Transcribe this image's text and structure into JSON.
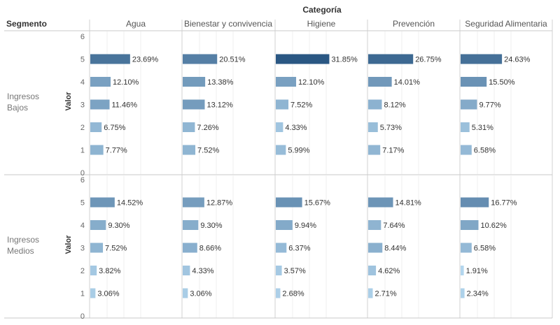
{
  "header": {
    "column_group_title": "Categoría",
    "row_header": "Segmento",
    "axis_title": "Valor"
  },
  "chart_data": {
    "type": "bar",
    "orientation": "horizontal",
    "columns": [
      "Agua",
      "Bienestar y convivencia",
      "Higiene",
      "Prevención",
      "Seguridad Alimentaria"
    ],
    "rows": [
      {
        "segment": "Ingresos Bajos",
        "categories": [
          "5",
          "4",
          "3",
          "2",
          "1"
        ],
        "values": [
          [
            23.69,
            12.1,
            11.46,
            6.75,
            7.77
          ],
          [
            20.51,
            13.38,
            13.12,
            7.26,
            7.52
          ],
          [
            31.85,
            12.1,
            7.52,
            4.33,
            5.99
          ],
          [
            26.75,
            14.01,
            8.12,
            5.73,
            7.17
          ],
          [
            24.63,
            15.5,
            9.77,
            5.31,
            6.58
          ]
        ],
        "labels": [
          [
            "23.69%",
            "12.10%",
            "11.46%",
            "6.75%",
            "7.77%"
          ],
          [
            "20.51%",
            "13.38%",
            "13.12%",
            "7.26%",
            "7.52%"
          ],
          [
            "31.85%",
            "12.10%",
            "7.52%",
            "4.33%",
            "5.99%"
          ],
          [
            "26.75%",
            "14.01%",
            "8.12%",
            "5.73%",
            "7.17%"
          ],
          [
            "24.63%",
            "15.50%",
            "9.77%",
            "5.31%",
            "6.58%"
          ]
        ]
      },
      {
        "segment": "Ingresos Medios",
        "categories": [
          "5",
          "4",
          "3",
          "2",
          "1"
        ],
        "values": [
          [
            14.52,
            9.3,
            7.52,
            3.82,
            3.06
          ],
          [
            12.87,
            9.3,
            8.66,
            4.33,
            3.06
          ],
          [
            15.67,
            9.94,
            6.37,
            3.57,
            2.68
          ],
          [
            14.81,
            7.64,
            8.44,
            4.62,
            2.71
          ],
          [
            16.77,
            10.62,
            6.58,
            1.91,
            2.34
          ]
        ],
        "labels": [
          [
            "14.52%",
            "9.30%",
            "7.52%",
            "3.82%",
            "3.06%"
          ],
          [
            "12.87%",
            "9.30%",
            "8.66%",
            "4.33%",
            "3.06%"
          ],
          [
            "15.67%",
            "9.94%",
            "6.37%",
            "3.57%",
            "2.68%"
          ],
          [
            "14.81%",
            "7.64%",
            "8.44%",
            "4.62%",
            "2.71%"
          ],
          [
            "16.77%",
            "10.62%",
            "6.58%",
            "1.91%",
            "2.34%"
          ]
        ]
      }
    ],
    "y_ticks": [
      "6",
      "5",
      "4",
      "3",
      "2",
      "1",
      "0"
    ],
    "color_scale": {
      "light": "#b3d6ee",
      "dark": "#2a5783",
      "min": 1.91,
      "max": 31.85
    },
    "grid": true,
    "legend": "none"
  }
}
